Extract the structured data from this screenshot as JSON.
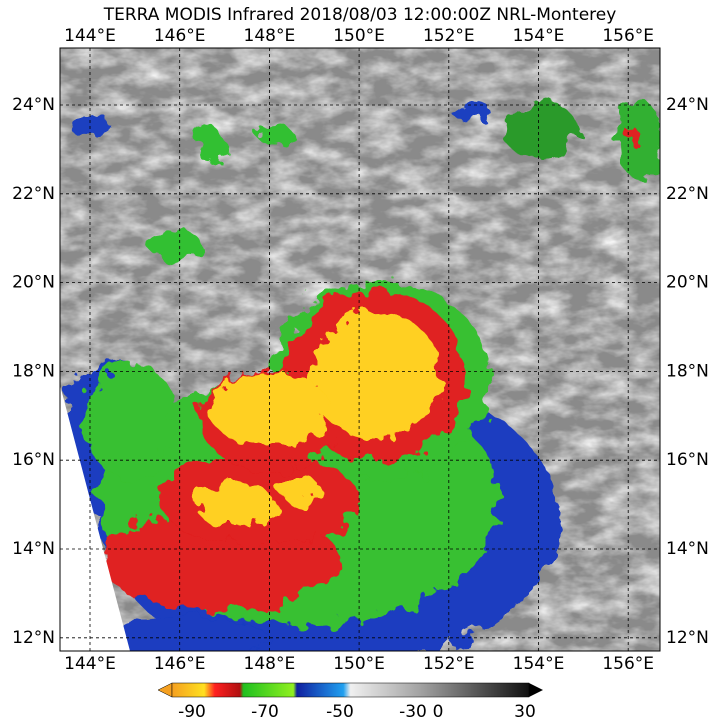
{
  "title": "TERRA MODIS Infrared 2018/08/03 12:00:00Z NRL-Monterey",
  "map": {
    "lon_labels": [
      "144°E",
      "146°E",
      "148°E",
      "150°E",
      "152°E",
      "154°E",
      "156°E"
    ],
    "lat_labels": [
      "24°N",
      "22°N",
      "20°N",
      "18°N",
      "16°N",
      "14°N",
      "12°N"
    ]
  },
  "colorbar": {
    "ticks": [
      "-90",
      "-70",
      "-50",
      "-30",
      "0",
      "30"
    ]
  }
}
